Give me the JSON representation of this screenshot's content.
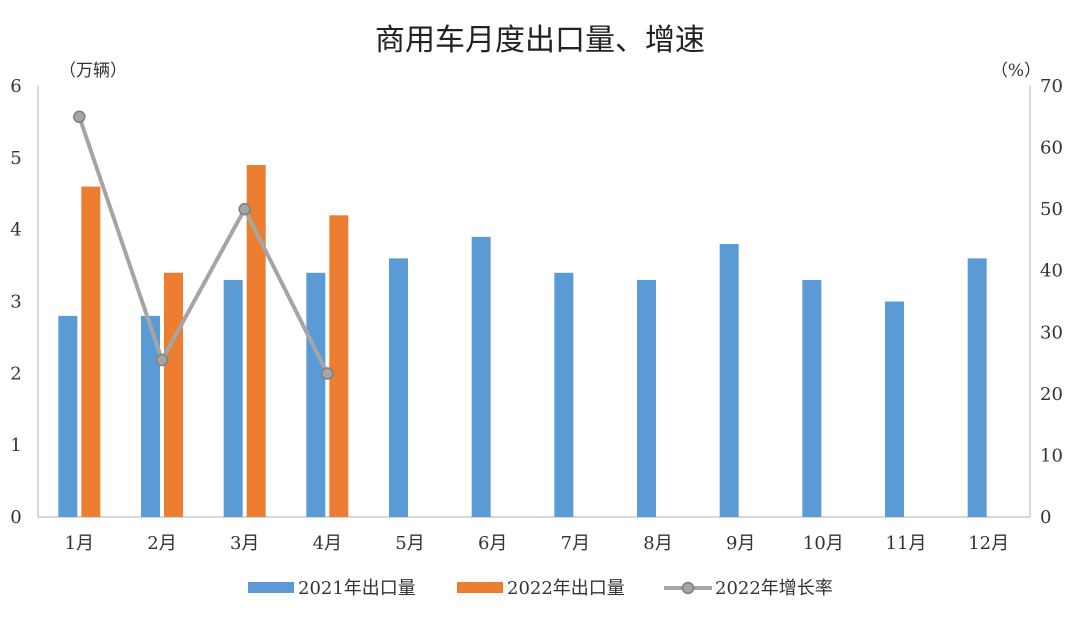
{
  "chart_data": {
    "type": "bar",
    "title": "商用车月度出口量、增速",
    "y_left_unit": "（万辆）",
    "y_right_unit": "（%）",
    "categories": [
      "1月",
      "2月",
      "3月",
      "4月",
      "5月",
      "6月",
      "7月",
      "8月",
      "9月",
      "10月",
      "11月",
      "12月"
    ],
    "ylim_left": [
      0,
      6
    ],
    "ylim_right": [
      0,
      70
    ],
    "y_left_ticks": [
      "0",
      "1",
      "2",
      "3",
      "4",
      "5",
      "6"
    ],
    "y_right_ticks": [
      "0",
      "10",
      "20",
      "30",
      "40",
      "50",
      "60",
      "70"
    ],
    "series": [
      {
        "name": "2021年出口量",
        "kind": "bar",
        "axis": "left",
        "color": "#5b9bd5",
        "values": [
          2.8,
          2.8,
          3.3,
          3.4,
          3.6,
          3.9,
          3.4,
          3.3,
          3.8,
          3.3,
          3.0,
          3.6
        ]
      },
      {
        "name": "2022年出口量",
        "kind": "bar",
        "axis": "left",
        "color": "#ed7d31",
        "values": [
          4.6,
          3.4,
          4.9,
          4.2,
          null,
          null,
          null,
          null,
          null,
          null,
          null,
          null
        ]
      },
      {
        "name": "2022年增长率",
        "kind": "line",
        "axis": "right",
        "color": "#a5a5a5",
        "values": [
          65,
          25.5,
          50,
          23.3,
          null,
          null,
          null,
          null,
          null,
          null,
          null,
          null
        ]
      }
    ],
    "legend_position": "bottom",
    "grid": false
  }
}
